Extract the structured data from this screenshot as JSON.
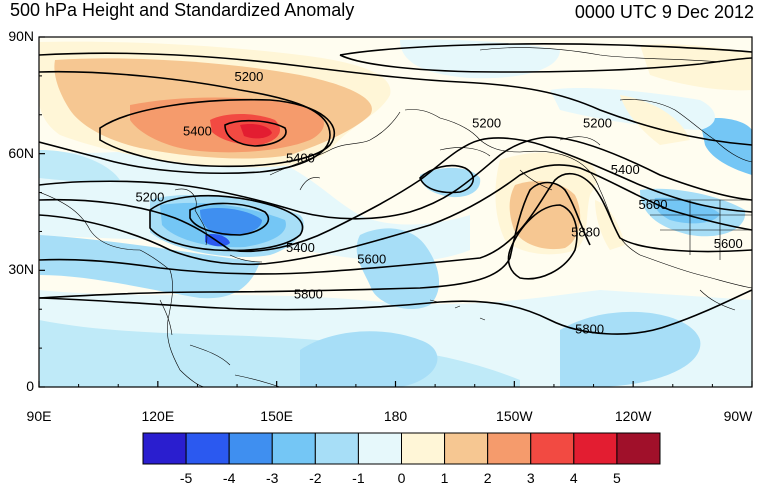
{
  "title": "500 hPa Height and Standardized Anomaly",
  "timestamp": "0000 UTC 9 Dec 2012",
  "lat_ticks": [
    {
      "value": 90,
      "label": "90N"
    },
    {
      "value": 60,
      "label": "60N"
    },
    {
      "value": 30,
      "label": "30N"
    },
    {
      "value": 0,
      "label": "0"
    }
  ],
  "lon_ticks": [
    {
      "value": 90,
      "label": "90E"
    },
    {
      "value": 120,
      "label": "120E"
    },
    {
      "value": 150,
      "label": "150E"
    },
    {
      "value": 180,
      "label": "180"
    },
    {
      "value": 210,
      "label": "150W"
    },
    {
      "value": 240,
      "label": "120W"
    },
    {
      "value": 270,
      "label": "90W"
    }
  ],
  "colorbar": {
    "labels": [
      "-5",
      "-4",
      "-3",
      "-2",
      "-1",
      "0",
      "1",
      "2",
      "3",
      "4",
      "5"
    ],
    "colors": [
      "#2a1ecf",
      "#2b59f0",
      "#3f8ff0",
      "#74c6f5",
      "#a7def7",
      "#e6f8fb",
      "#fff6d7",
      "#f6c792",
      "#f59b6c",
      "#f24a42",
      "#e31d31",
      "#a0102a"
    ]
  },
  "contour_labels": [
    {
      "text": "5200",
      "lon": 143,
      "lat": 80
    },
    {
      "text": "5400",
      "lon": 130,
      "lat": 66
    },
    {
      "text": "5400",
      "lon": 156,
      "lat": 59
    },
    {
      "text": "5200",
      "lon": 118,
      "lat": 49
    },
    {
      "text": "5200",
      "lon": 203,
      "lat": 68
    },
    {
      "text": "5200",
      "lon": 231,
      "lat": 68
    },
    {
      "text": "5400",
      "lon": 238,
      "lat": 56
    },
    {
      "text": "5600",
      "lon": 245,
      "lat": 47
    },
    {
      "text": "5400",
      "lon": 156,
      "lat": 36
    },
    {
      "text": "5600",
      "lon": 174,
      "lat": 33
    },
    {
      "text": "5800",
      "lon": 158,
      "lat": 24
    },
    {
      "text": "5880",
      "lon": 228,
      "lat": 40
    },
    {
      "text": "5800",
      "lon": 229,
      "lat": 15
    },
    {
      "text": "5600",
      "lon": 264,
      "lat": 37
    }
  ]
}
